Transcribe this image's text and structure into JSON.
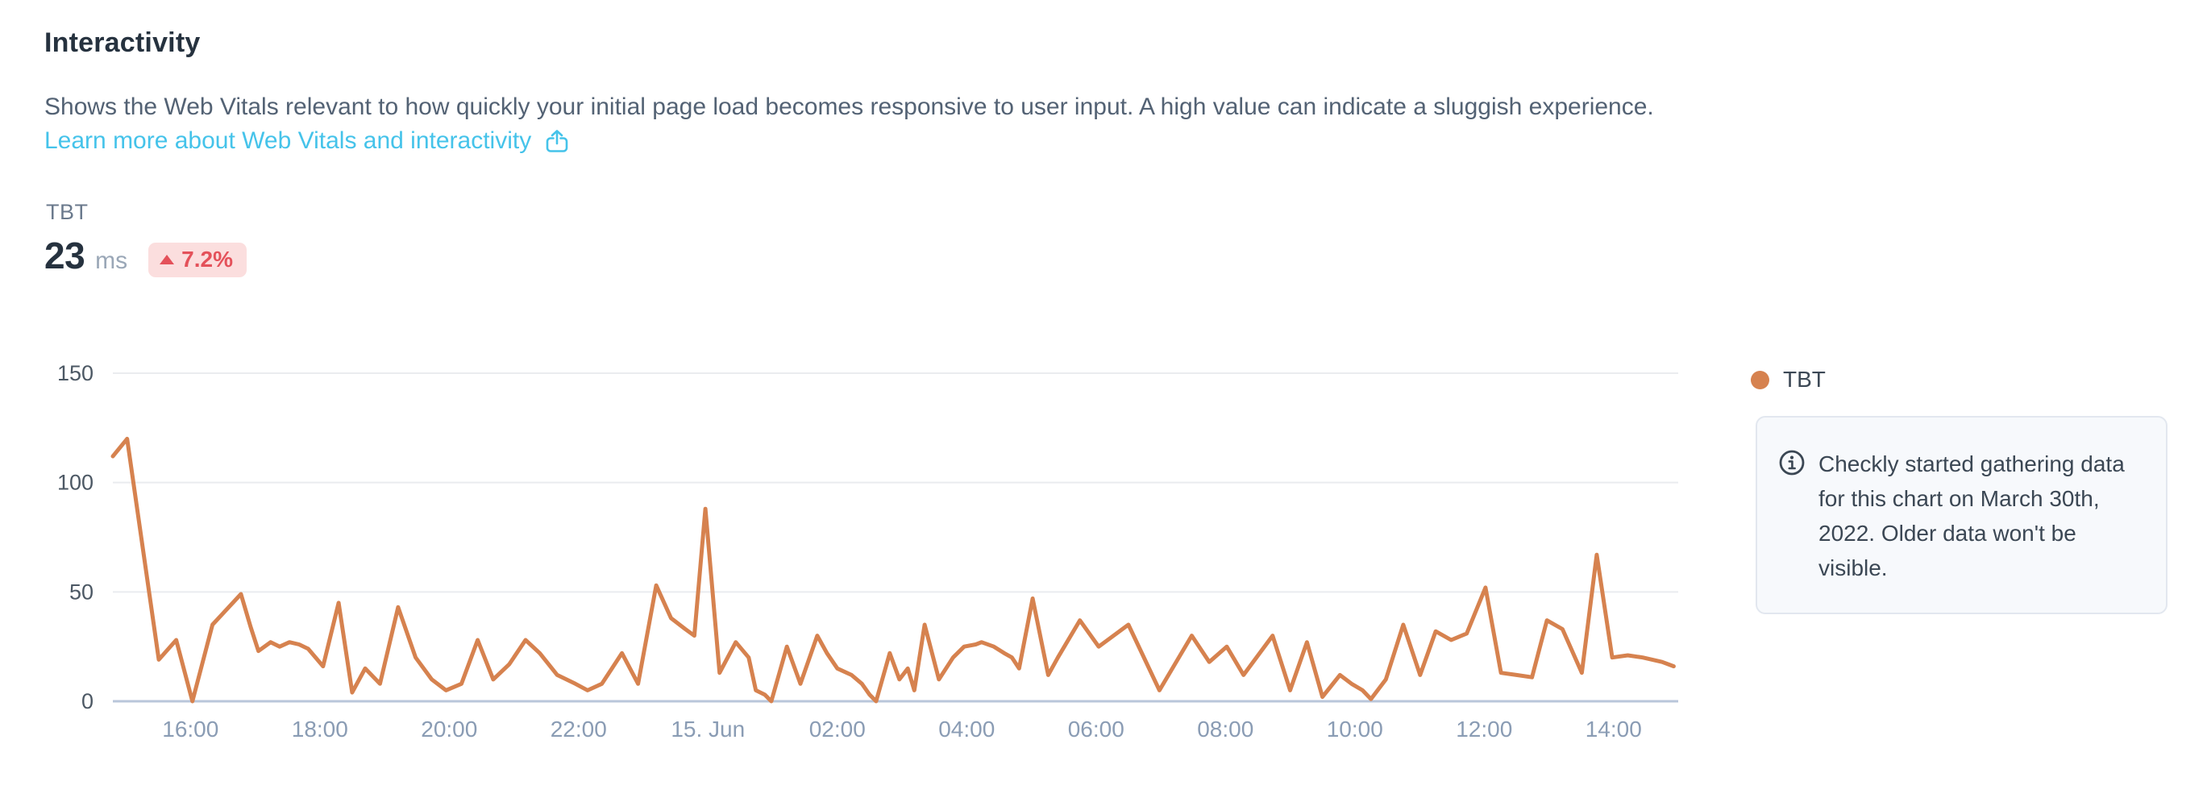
{
  "header": {
    "title": "Interactivity",
    "description": "Shows the Web Vitals relevant to how quickly your initial page load becomes responsive to user input. A high value can indicate a sluggish experience.",
    "link_label": "Learn more about Web Vitals and interactivity"
  },
  "metric": {
    "label": "TBT",
    "value": "23",
    "unit": "ms",
    "delta": "7.2%",
    "delta_direction": "up"
  },
  "legend": {
    "label": "TBT"
  },
  "info_box": {
    "lines": [
      "Checkly started gathering data",
      "for this chart on March 30th,",
      "2022. Older data won't be",
      "visible."
    ]
  },
  "colors": {
    "text_dark": "#26323f",
    "text_muted": "#536274",
    "link_color": "#45c3ea",
    "label_gray": "#6b7a8d",
    "unit_gray": "#9aa7b7",
    "badge_bg": "#fbdede",
    "badge_text": "#e4515a",
    "line_orange": "#d6824f",
    "grid_line": "#eaecef",
    "axis_base_line": "#b9c6da",
    "x_label": "#8a9cb4",
    "y_label": "#4c5864",
    "info_bg": "#f7f9fc",
    "info_border": "#e2e7ef",
    "info_text": "#3b4754"
  },
  "chart_data": {
    "type": "line",
    "title": "TBT over time",
    "xlabel": "",
    "ylabel": "",
    "ylim": [
      0,
      150
    ],
    "y_ticks": [
      0,
      50,
      100,
      150
    ],
    "x_range": [
      14.8,
      39.0
    ],
    "grid": true,
    "legend_position": "right",
    "x_ticks": [
      {
        "t": 16,
        "label": "16:00"
      },
      {
        "t": 18,
        "label": "18:00"
      },
      {
        "t": 20,
        "label": "20:00"
      },
      {
        "t": 22,
        "label": "22:00"
      },
      {
        "t": 24,
        "label": "15. Jun"
      },
      {
        "t": 26,
        "label": "02:00"
      },
      {
        "t": 28,
        "label": "04:00"
      },
      {
        "t": 30,
        "label": "06:00"
      },
      {
        "t": 32,
        "label": "08:00"
      },
      {
        "t": 34,
        "label": "10:00"
      },
      {
        "t": 36,
        "label": "12:00"
      },
      {
        "t": 38,
        "label": "14:00"
      }
    ],
    "series": [
      {
        "name": "TBT",
        "unit": "ms",
        "color": "#d6824f",
        "points": [
          [
            14.8,
            112
          ],
          [
            15.02,
            120
          ],
          [
            15.51,
            19
          ],
          [
            15.78,
            28
          ],
          [
            16.03,
            0
          ],
          [
            16.34,
            35
          ],
          [
            16.78,
            49
          ],
          [
            16.93,
            34
          ],
          [
            17.05,
            23
          ],
          [
            17.24,
            27
          ],
          [
            17.38,
            25
          ],
          [
            17.53,
            27
          ],
          [
            17.68,
            26
          ],
          [
            17.82,
            24
          ],
          [
            18.05,
            16
          ],
          [
            18.29,
            45
          ],
          [
            18.5,
            4
          ],
          [
            18.7,
            15
          ],
          [
            18.93,
            8
          ],
          [
            19.21,
            43
          ],
          [
            19.48,
            20
          ],
          [
            19.73,
            10
          ],
          [
            19.95,
            5
          ],
          [
            20.19,
            8
          ],
          [
            20.44,
            28
          ],
          [
            20.68,
            10
          ],
          [
            20.93,
            17
          ],
          [
            21.18,
            28
          ],
          [
            21.4,
            22
          ],
          [
            21.67,
            12
          ],
          [
            21.95,
            8
          ],
          [
            22.14,
            5
          ],
          [
            22.36,
            8
          ],
          [
            22.67,
            22
          ],
          [
            22.92,
            8
          ],
          [
            23.2,
            53
          ],
          [
            23.43,
            38
          ],
          [
            23.65,
            33
          ],
          [
            23.79,
            30
          ],
          [
            23.96,
            88
          ],
          [
            24.18,
            13
          ],
          [
            24.43,
            27
          ],
          [
            24.63,
            20
          ],
          [
            24.74,
            5
          ],
          [
            24.88,
            3
          ],
          [
            24.98,
            0
          ],
          [
            25.22,
            25
          ],
          [
            25.43,
            8
          ],
          [
            25.69,
            30
          ],
          [
            25.84,
            22
          ],
          [
            26.0,
            15
          ],
          [
            26.22,
            12
          ],
          [
            26.38,
            8
          ],
          [
            26.5,
            3
          ],
          [
            26.6,
            0
          ],
          [
            26.81,
            22
          ],
          [
            26.96,
            10
          ],
          [
            27.09,
            15
          ],
          [
            27.19,
            5
          ],
          [
            27.35,
            35
          ],
          [
            27.57,
            10
          ],
          [
            27.79,
            20
          ],
          [
            27.96,
            25
          ],
          [
            28.14,
            26
          ],
          [
            28.23,
            27
          ],
          [
            28.42,
            25
          ],
          [
            28.58,
            22
          ],
          [
            28.7,
            20
          ],
          [
            28.81,
            15
          ],
          [
            29.02,
            47
          ],
          [
            29.26,
            12
          ],
          [
            29.41,
            20
          ],
          [
            29.75,
            37
          ],
          [
            30.04,
            25
          ],
          [
            30.5,
            35
          ],
          [
            30.98,
            5
          ],
          [
            31.48,
            30
          ],
          [
            31.75,
            18
          ],
          [
            32.02,
            25
          ],
          [
            32.28,
            12
          ],
          [
            32.73,
            30
          ],
          [
            33.0,
            5
          ],
          [
            33.26,
            27
          ],
          [
            33.5,
            2
          ],
          [
            33.77,
            12
          ],
          [
            33.95,
            8
          ],
          [
            34.12,
            5
          ],
          [
            34.25,
            1
          ],
          [
            34.48,
            10
          ],
          [
            34.75,
            35
          ],
          [
            35.01,
            12
          ],
          [
            35.25,
            32
          ],
          [
            35.49,
            28
          ],
          [
            35.73,
            31
          ],
          [
            36.02,
            52
          ],
          [
            36.26,
            13
          ],
          [
            36.5,
            12
          ],
          [
            36.74,
            11
          ],
          [
            36.97,
            37
          ],
          [
            37.21,
            33
          ],
          [
            37.51,
            13
          ],
          [
            37.74,
            67
          ],
          [
            37.98,
            20
          ],
          [
            38.22,
            21
          ],
          [
            38.45,
            20
          ],
          [
            38.75,
            18
          ],
          [
            38.93,
            16
          ]
        ]
      }
    ]
  }
}
